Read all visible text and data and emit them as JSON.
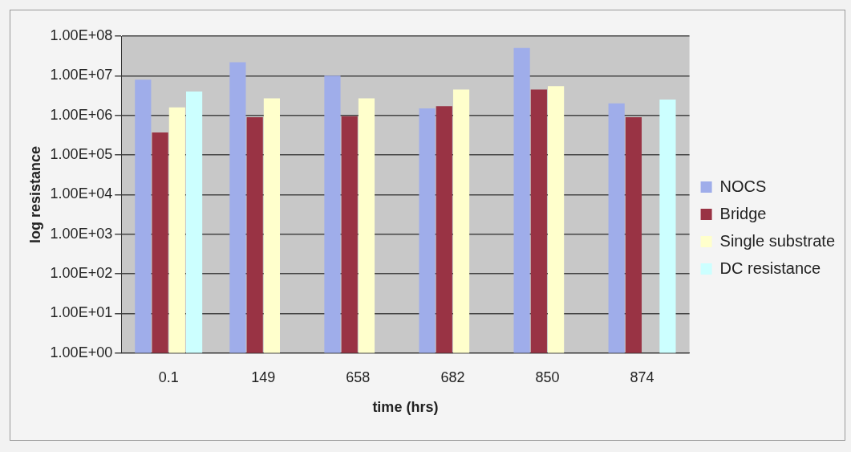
{
  "chart_data": {
    "type": "bar",
    "xlabel": "time (hrs)",
    "ylabel": "log resistance",
    "categories": [
      "0.1",
      "149",
      "658",
      "682",
      "850",
      "874"
    ],
    "series": [
      {
        "name": "NOCS",
        "color": "#9fadea",
        "values": [
          8000000,
          22000000,
          10000000,
          1500000,
          50000000,
          2000000
        ]
      },
      {
        "name": "Bridge",
        "color": "#993344",
        "values": [
          370000,
          900000,
          950000,
          1700000,
          4500000,
          900000
        ]
      },
      {
        "name": "Single substrate",
        "color": "#ffffcc",
        "values": [
          1600000,
          2700000,
          2700000,
          4500000,
          5500000,
          null
        ]
      },
      {
        "name": "DC resistance",
        "color": "#ccffff",
        "values": [
          4000000,
          null,
          null,
          null,
          null,
          2500000
        ]
      }
    ],
    "log": "y",
    "ylim": [
      1,
      100000000
    ],
    "yticks": [
      {
        "value": 1,
        "label": "1.00E+00"
      },
      {
        "value": 10,
        "label": "1.00E+01"
      },
      {
        "value": 100,
        "label": "1.00E+02"
      },
      {
        "value": 1000,
        "label": "1.00E+03"
      },
      {
        "value": 10000,
        "label": "1.00E+04"
      },
      {
        "value": 100000,
        "label": "1.00E+05"
      },
      {
        "value": 1000000,
        "label": "1.00E+06"
      },
      {
        "value": 10000000,
        "label": "1.00E+07"
      },
      {
        "value": 100000000,
        "label": "1.00E+08"
      }
    ],
    "grid": "y",
    "legend": "right"
  }
}
